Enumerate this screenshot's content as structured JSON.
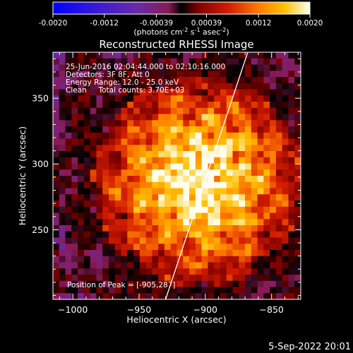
{
  "colorbar": {
    "tick_labels": [
      "-0.0020",
      "-0.0012",
      "-0.00039",
      "0.00039",
      "0.0012",
      "0.0020"
    ],
    "range": [
      -0.002,
      0.002
    ],
    "units_main": "(photons cm",
    "units_exp1": "-2",
    "units_mid": " s",
    "units_exp2": "-1",
    "units_tail": " asec",
    "units_exp3": "-2",
    "units_close": ")"
  },
  "annotations": {
    "time_range": "25-Jun-2016 02:04:44.000 to 02:10:16.000",
    "detectors": "Detectors: 3F 8F, Att 0",
    "energy": "Energy Range: 12.0 - 25.0 keV",
    "clean": "Clean     Total counts: 3.70E+03",
    "peak": "Position of Peak = [-905,287]"
  },
  "footer": {
    "date": "5-Sep-2022 20:01"
  },
  "chart_data": {
    "type": "heatmap",
    "title": "Reconstructed RHESSI Image",
    "xlabel": "Heliocentric X (arcsec)",
    "ylabel": "Heliocentric Y (arcsec)",
    "xlim": [
      -1015,
      -828
    ],
    "ylim": [
      197,
      385
    ],
    "xticks": [
      -1000,
      -950,
      -900,
      -850
    ],
    "xtick_labels": [
      "−1000",
      "−950",
      "−900",
      "−850"
    ],
    "yticks": [
      250,
      300,
      350
    ],
    "ytick_labels": [
      "250",
      "300",
      "350"
    ],
    "grid": false,
    "peak_position": [
      -905,
      287
    ],
    "limb_line": {
      "x1": -930,
      "y1": 197,
      "x2": -868,
      "y2": 385
    },
    "colors": {
      "limb": "#ffffff",
      "frame": "#ffffff",
      "background": "#000000"
    }
  }
}
